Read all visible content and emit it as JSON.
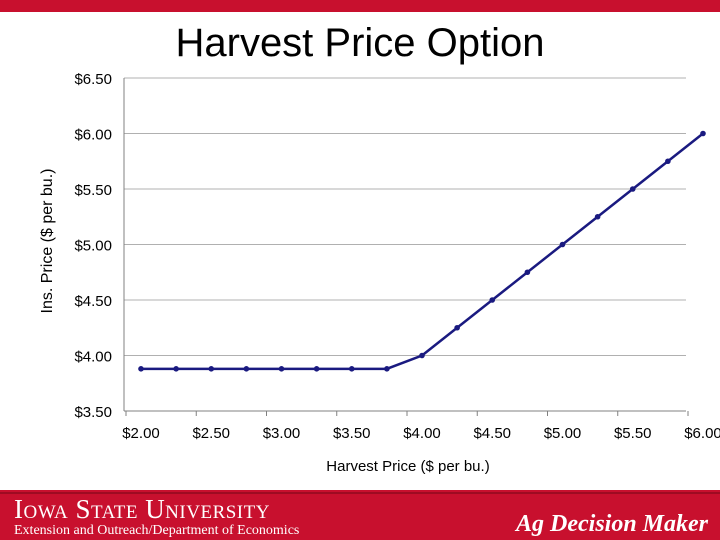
{
  "slide": {
    "title": "Harvest Price Option"
  },
  "chart_data": {
    "type": "line",
    "title": "Harvest Price Option",
    "xlabel": "Harvest Price ($ per bu.)",
    "ylabel": "Ins. Price ($ per bu.)",
    "x_ticks": [
      "$2.00",
      "$2.50",
      "$3.00",
      "$3.50",
      "$4.00",
      "$4.50",
      "$5.00",
      "$5.50",
      "$6.00"
    ],
    "y_ticks": [
      "$3.50",
      "$4.00",
      "$4.50",
      "$5.00",
      "$5.50",
      "$6.00",
      "$6.50"
    ],
    "xlim": [
      2.0,
      6.0
    ],
    "ylim": [
      3.5,
      6.5
    ],
    "grid": "horizontal",
    "series_color": "#1a1a80",
    "x": [
      2.0,
      2.25,
      2.5,
      2.75,
      3.0,
      3.25,
      3.5,
      3.75,
      4.0,
      4.25,
      4.5,
      4.75,
      5.0,
      5.25,
      5.5,
      5.75,
      6.0
    ],
    "y": [
      3.88,
      3.88,
      3.88,
      3.88,
      3.88,
      3.88,
      3.88,
      3.88,
      4.0,
      4.25,
      4.5,
      4.75,
      5.0,
      5.25,
      5.5,
      5.75,
      6.0
    ]
  },
  "footer": {
    "university": "Iowa State University",
    "department": "Extension and Outreach/Department of Economics",
    "brand": "Ag Decision Maker"
  },
  "colors": {
    "brand_red": "#c8102e",
    "line": "#1a1a80"
  }
}
